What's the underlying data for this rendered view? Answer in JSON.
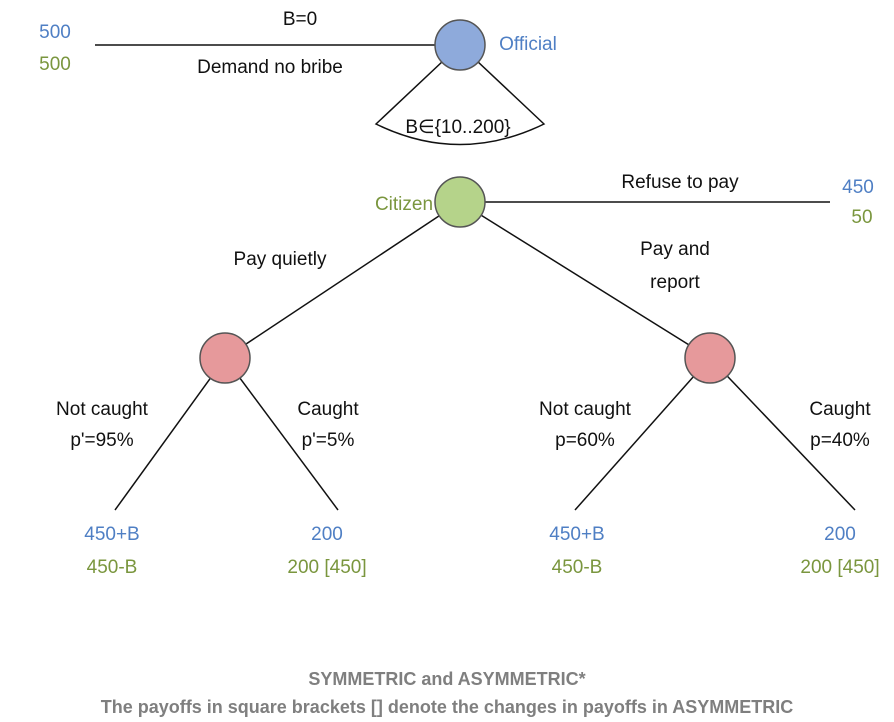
{
  "nodes": {
    "official": "Official",
    "citizen": "Citizen"
  },
  "edges": {
    "no_bribe_top": "B=0",
    "no_bribe_bottom": "Demand no bribe",
    "bribe_range": "B∈{10..200}",
    "refuse": "Refuse to pay",
    "pay_quietly": "Pay quietly",
    "pay_report_1": "Pay and",
    "pay_report_2": "report",
    "quiet_not_caught_1": "Not caught",
    "quiet_not_caught_2": "p'=95%",
    "quiet_caught_1": "Caught",
    "quiet_caught_2": "p'=5%",
    "report_not_caught_1": "Not caught",
    "report_not_caught_2": "p=60%",
    "report_caught_1": "Caught",
    "report_caught_2": "p=40%"
  },
  "payoffs": [
    {
      "official": "500",
      "citizen": "500"
    },
    {
      "official": "450",
      "citizen": "50"
    },
    {
      "official": "450+B",
      "citizen": "450-B"
    },
    {
      "official": "200",
      "citizen": "200 [450]"
    },
    {
      "official": "450+B",
      "citizen": "450-B"
    },
    {
      "official": "200",
      "citizen": "200 [450]"
    }
  ],
  "footer": {
    "title": "SYMMETRIC and ASYMMETRIC*",
    "note": "The payoffs in square brackets [] denote the changes in payoffs in ASYMMETRIC"
  }
}
